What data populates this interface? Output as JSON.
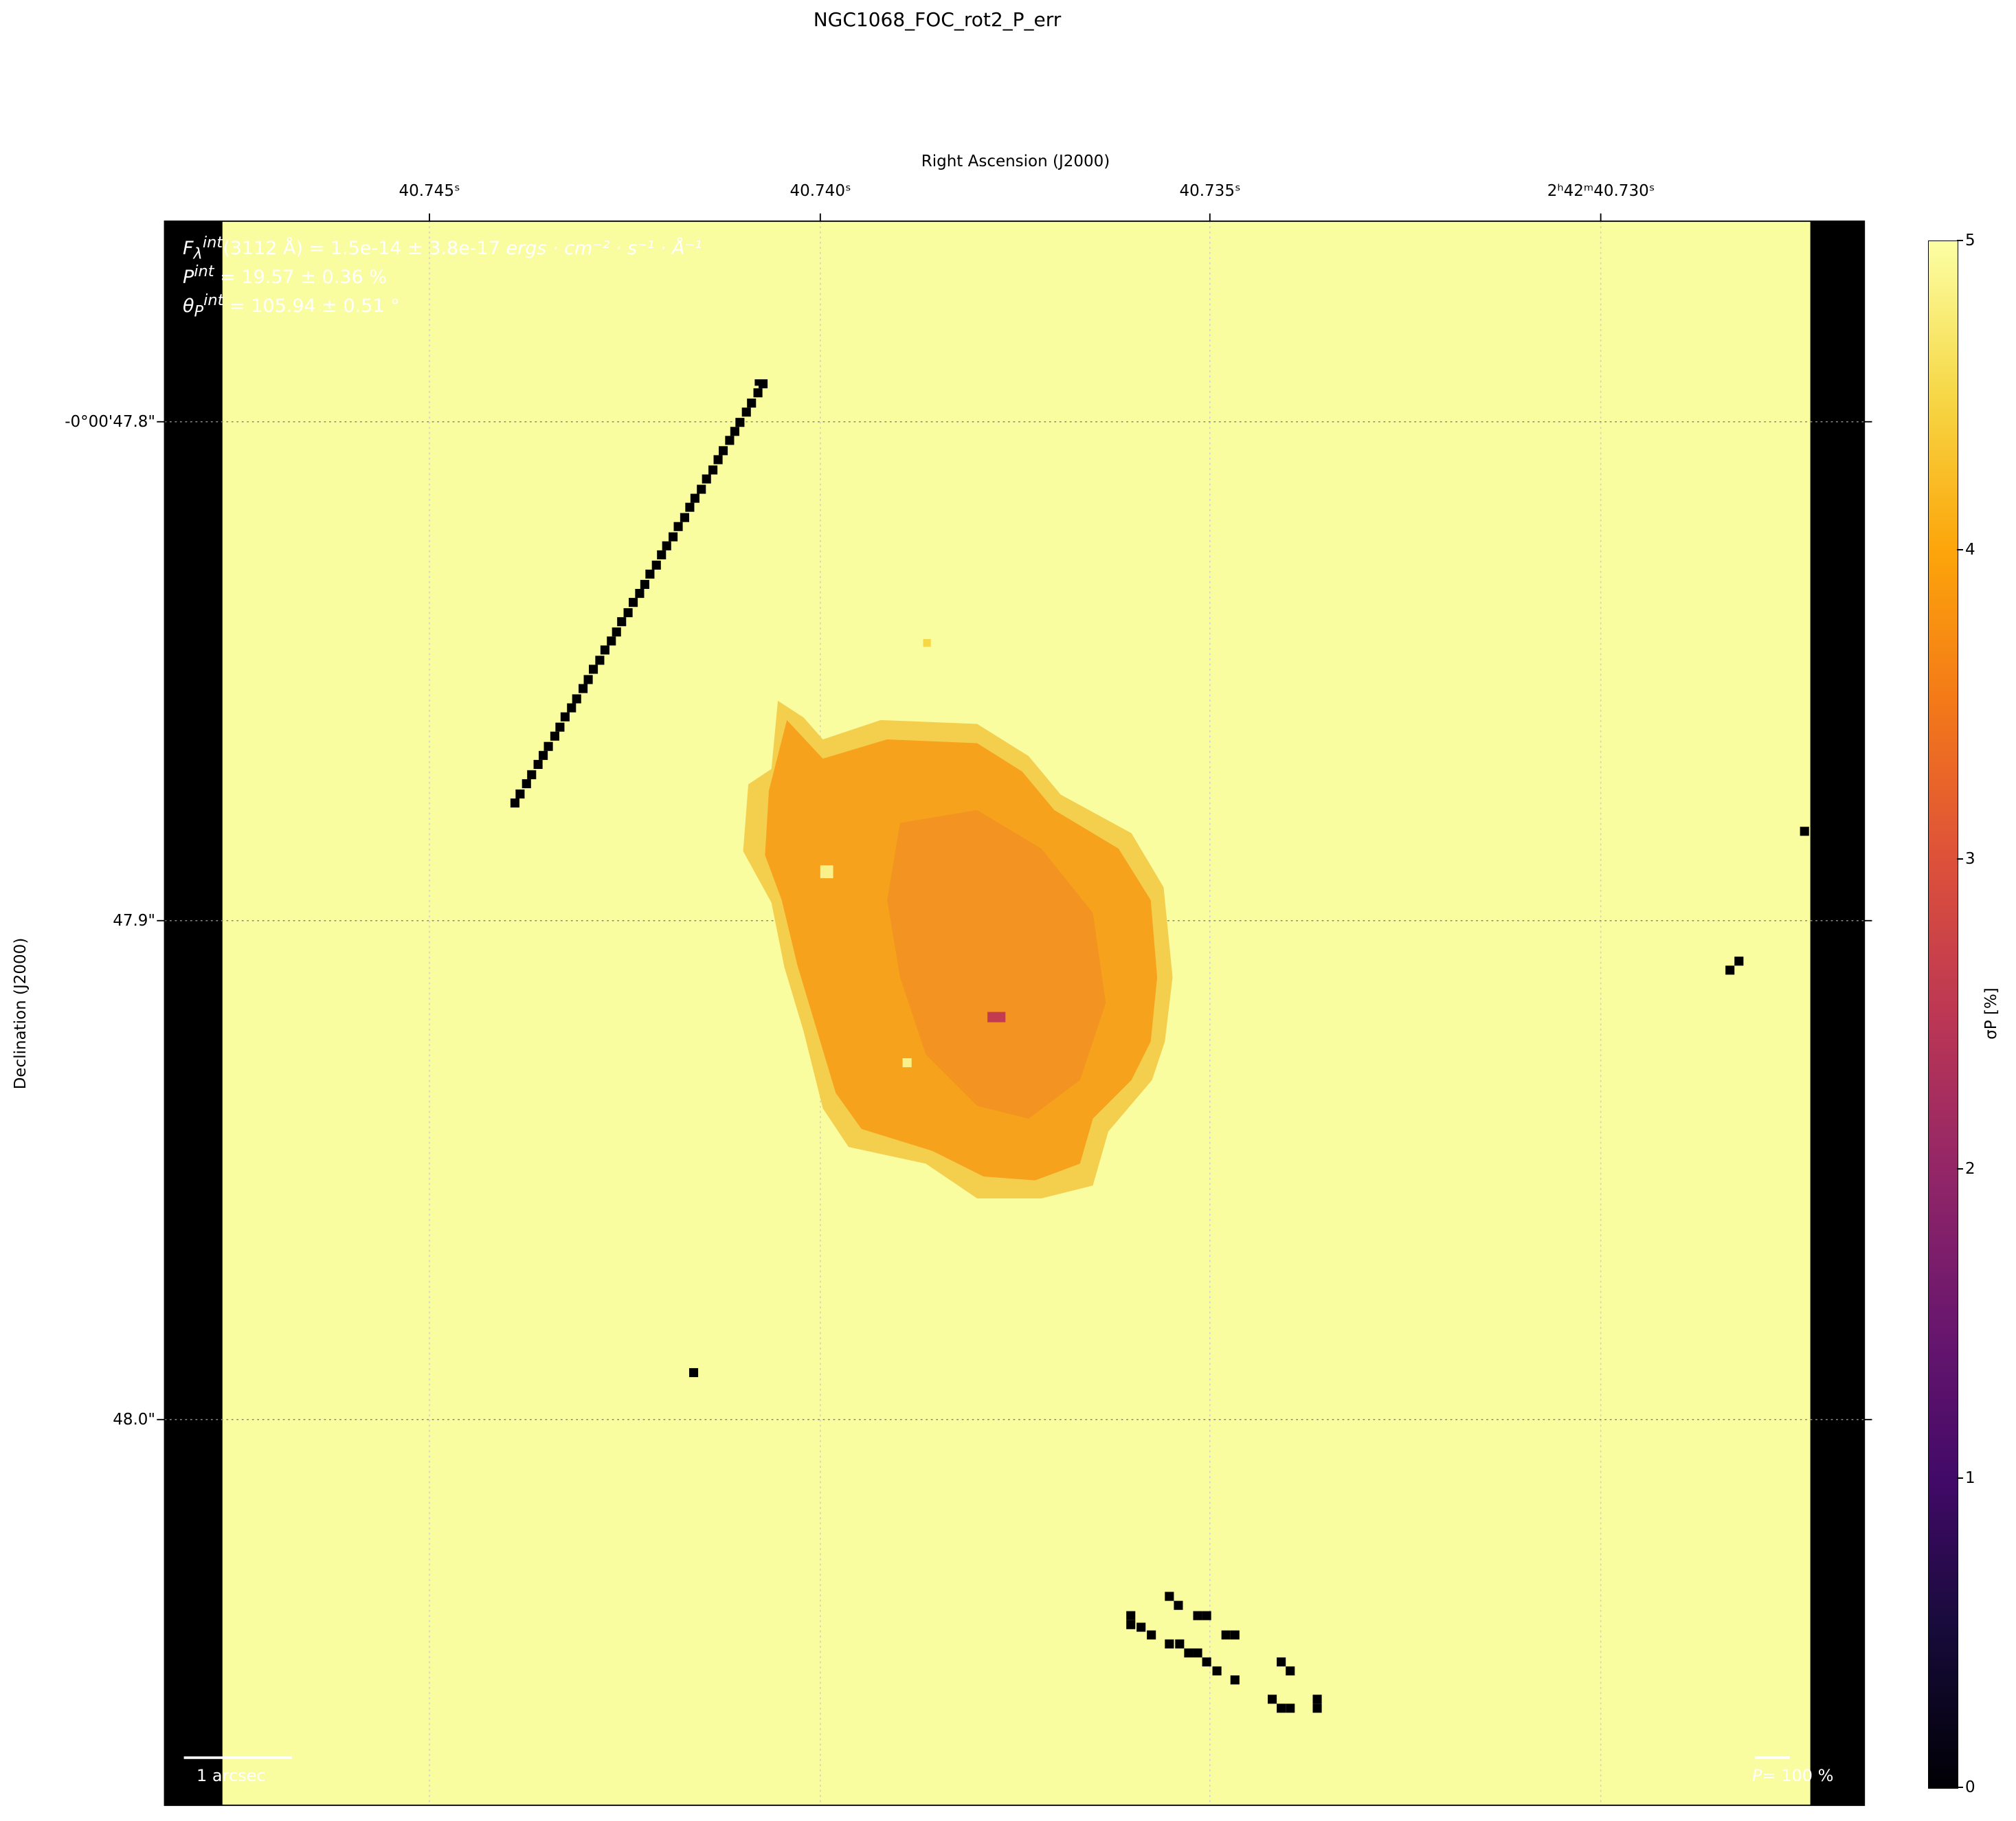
{
  "chart_data": {
    "type": "heatmap",
    "title": "NGC1068_FOC_rot2_P_err",
    "xlabel": "Right Ascension (J2000)",
    "ylabel": "Declination (J2000)",
    "x_ticks": [
      "40.745ˢ",
      "40.740ˢ",
      "40.735ˢ",
      "2ʰ42ᵐ40.730ˢ"
    ],
    "y_ticks": [
      "-0°00'47.8\"",
      "47.9\"",
      "48.0\""
    ],
    "colorbar": {
      "label": "σP [%]",
      "colormap": "inferno",
      "range": [
        0,
        5
      ],
      "ticks": [
        "0",
        "1",
        "2",
        "3",
        "4",
        "5"
      ]
    },
    "grid": true,
    "annotations": {
      "flux": "F_λ^int(3112 Å) = 1.5e-14 ± 3.8e-17 ergs · cm⁻² · s⁻¹ · Å⁻¹",
      "flux_main": "(3112 Å) = 1.5e-14 ± 3.8e-17 ",
      "flux_units": "ergs · cm⁻² · s⁻¹ · Å⁻¹",
      "pol_value": " = 19.57 ± 0.36 %",
      "angle_value": " = 105.94 ± 0.51 °",
      "scale_bar": "1 arcsec",
      "pol_scale": "= 100 %"
    },
    "description_values": {
      "background_sigma_P": 5,
      "core_sigma_P_approx": 3.9,
      "nucleus_sigma_P_approx": 2.5
    },
    "colors": {
      "background": "#fafca0",
      "core": "#f7a21c",
      "edge": "#f4cf4d",
      "masked": "#000000"
    }
  }
}
